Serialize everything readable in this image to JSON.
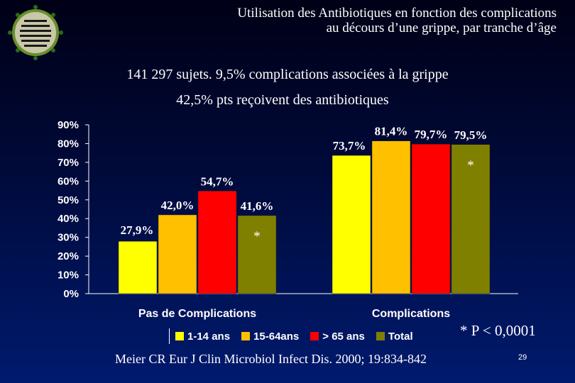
{
  "slide": {
    "title_line1": "Utilisation des Antibiotiques en fonction des complications",
    "title_line2": "au décours d’une grippe, par tranche d’âge",
    "subtitle1": "141 297 sujets.  9,5% complications associées à la grippe",
    "subtitle2": "42,5% pts reçoivent des antibiotiques",
    "p_note": "* P < 0,0001",
    "citation": "Meier CR Eur J Clin Microbiol Infect Dis. 2000; 19:834-842",
    "page_number": "29",
    "logo_icon": "virus-icon"
  },
  "chart_data": {
    "type": "bar",
    "categories": [
      "Pas de Complications",
      "Complications"
    ],
    "series": [
      {
        "name": "1-14 ans",
        "color": "#ffff00",
        "values": [
          27.9,
          73.7
        ],
        "labels": [
          "27,9%",
          "73,7%"
        ]
      },
      {
        "name": "15-64ans",
        "color": "#ffc000",
        "values": [
          42.0,
          81.4
        ],
        "labels": [
          "42,0%",
          "81,4%"
        ]
      },
      {
        "name": "> 65 ans",
        "color": "#ff0000",
        "values": [
          54.7,
          79.7
        ],
        "labels": [
          "54,7%",
          "79,7%"
        ]
      },
      {
        "name": "Total",
        "color": "#808000",
        "values": [
          41.6,
          79.5
        ],
        "labels": [
          "41,6%",
          "79,5%"
        ]
      }
    ],
    "significance_marker": "*",
    "yticks": [
      "0%",
      "10%",
      "20%",
      "30%",
      "40%",
      "50%",
      "60%",
      "70%",
      "80%",
      "90%"
    ],
    "ylim": [
      0,
      90
    ],
    "legend_position": "bottom",
    "grid": false
  }
}
